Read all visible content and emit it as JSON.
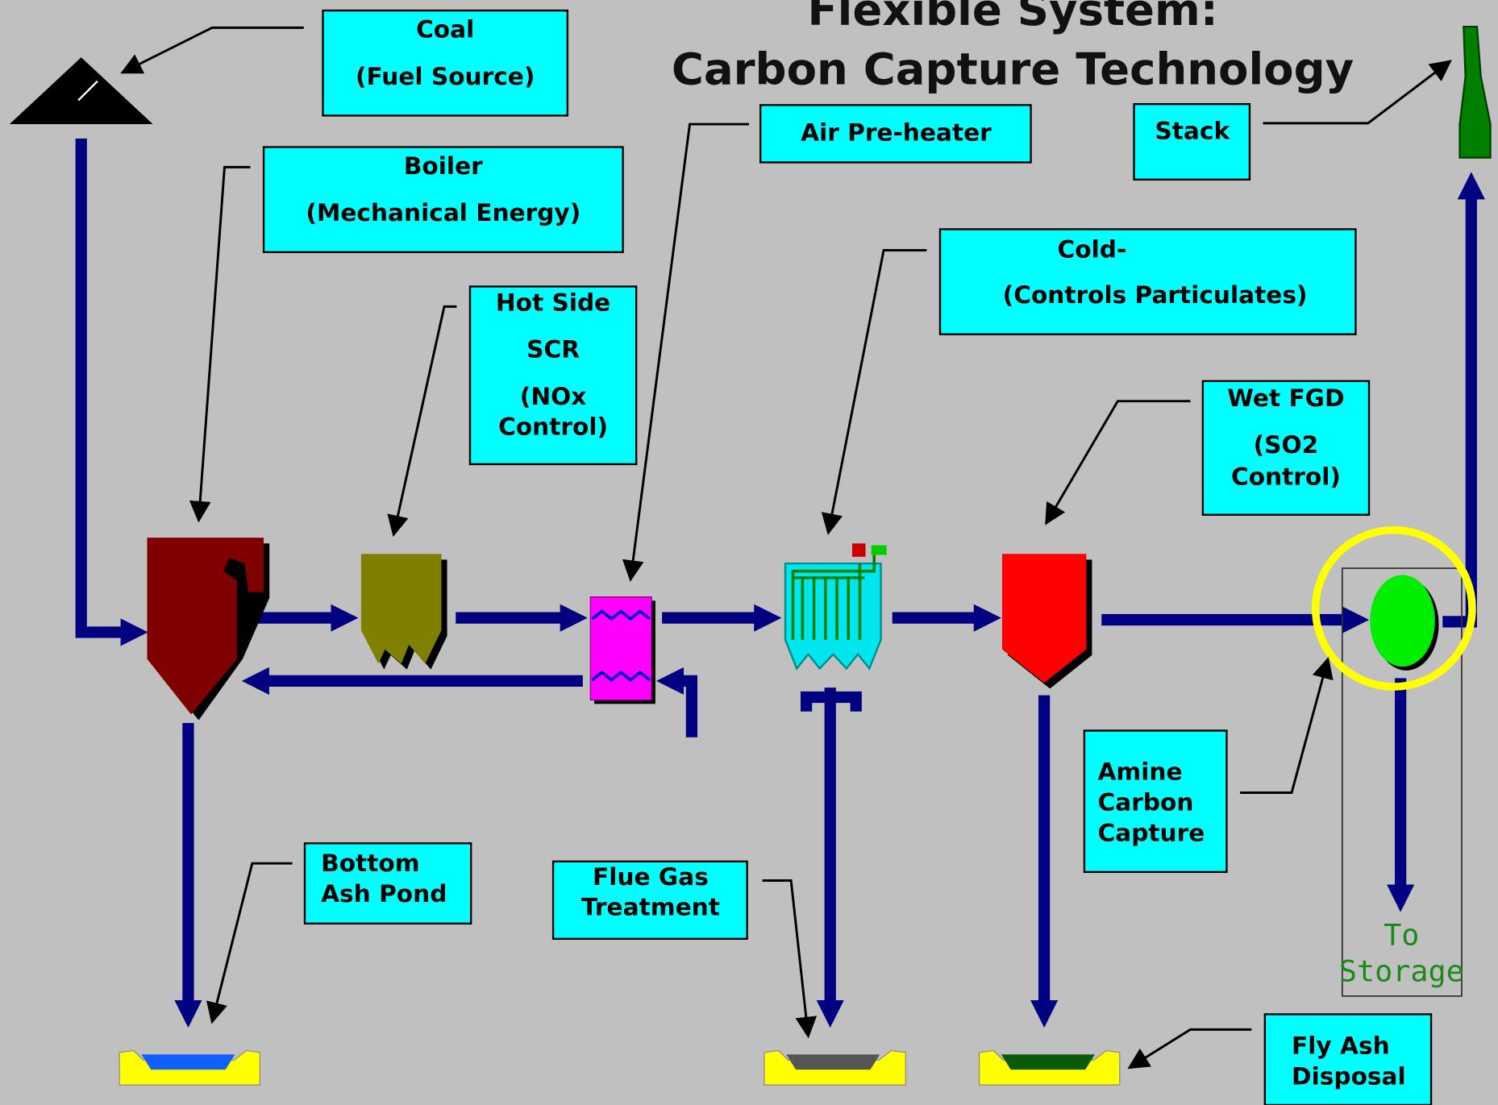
{
  "title": [
    "Flexible System:",
    "Carbon Capture Technology"
  ],
  "nodes": [
    {
      "lines": [
        "Coal",
        "(Fuel Source)"
      ]
    },
    {
      "lines": [
        "Boiler",
        "(Mechanical Energy)"
      ]
    },
    {
      "lines": [
        "Hot Side",
        "SCR",
        "(NOx",
        "Control)"
      ]
    },
    {
      "lines": [
        "Air Pre-heater"
      ]
    },
    {
      "lines": [
        "Stack"
      ]
    },
    {
      "lines": [
        "Cold-",
        "(Controls Particulates)"
      ]
    },
    {
      "lines": [
        "Wet FGD",
        "(SO2",
        "Control)"
      ]
    },
    {
      "lines": [
        "Amine",
        "Carbon",
        "Capture"
      ]
    },
    {
      "lines": [
        "Bottom",
        "Ash Pond"
      ]
    },
    {
      "lines": [
        "Flue Gas",
        "Treatment"
      ]
    },
    {
      "lines": [
        "Fly Ash",
        "Disposal"
      ]
    },
    {
      "lines": [
        "To",
        "Storage"
      ]
    }
  ]
}
